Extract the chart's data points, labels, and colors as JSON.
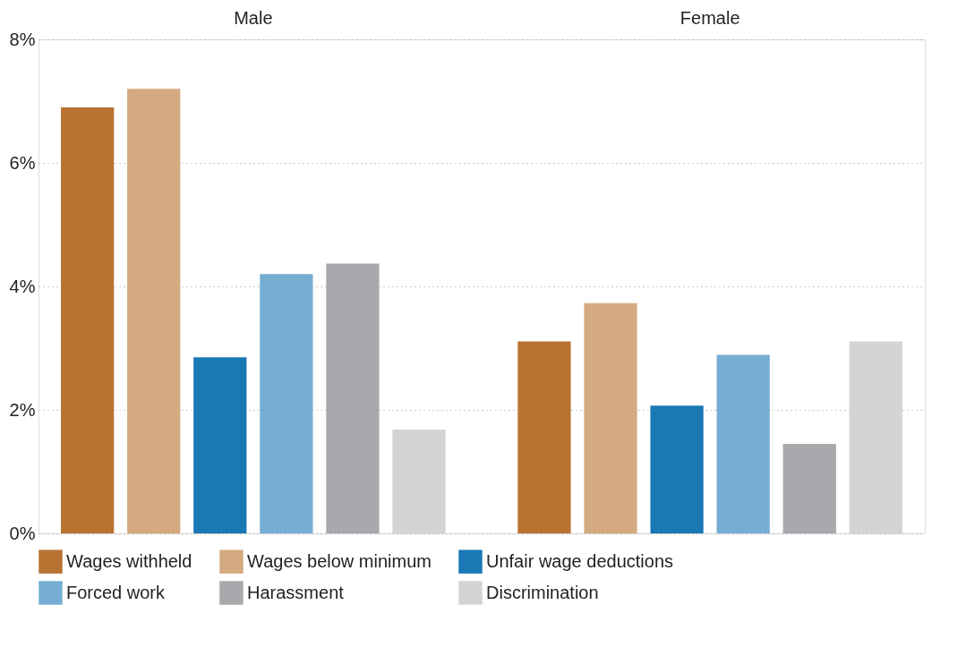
{
  "chart_data": {
    "type": "bar",
    "categories": [
      "Male",
      "Female"
    ],
    "ylim": [
      0,
      8
    ],
    "yticks": [
      {
        "value": 0,
        "label": "0%"
      },
      {
        "value": 2,
        "label": "2%"
      },
      {
        "value": 4,
        "label": "4%"
      },
      {
        "value": 6,
        "label": "6%"
      },
      {
        "value": 8,
        "label": "8%"
      }
    ],
    "grid": "y",
    "legend": "bottom",
    "series": [
      {
        "name": "Wages withheld",
        "color": "#b87333",
        "values": [
          6.9,
          3.11
        ]
      },
      {
        "name": "Wages below minimum",
        "color": "#d4aa80",
        "values": [
          7.2,
          3.73
        ]
      },
      {
        "name": "Unfair wage deductions",
        "color": "#1a78b5",
        "values": [
          2.85,
          2.07
        ]
      },
      {
        "name": "Forced work",
        "color": "#76aed3",
        "values": [
          4.2,
          2.89
        ]
      },
      {
        "name": "Harassment",
        "color": "#a8a9ad",
        "values": [
          4.37,
          1.45
        ]
      },
      {
        "name": "Discrimination",
        "color": "#d3d4d6",
        "values": [
          1.68,
          3.11
        ]
      }
    ]
  }
}
